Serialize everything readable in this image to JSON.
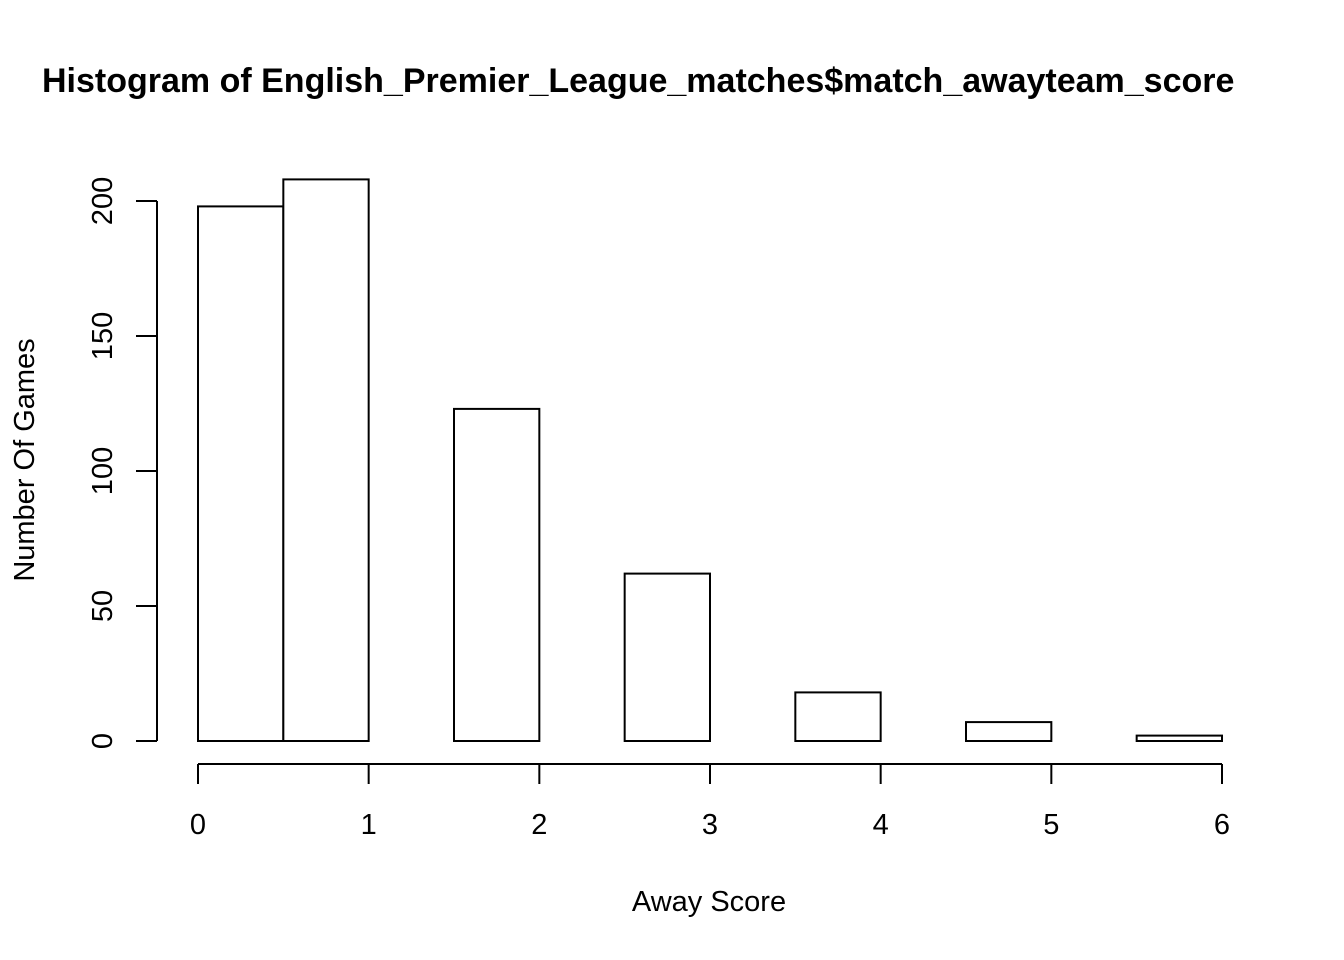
{
  "chart_data": {
    "type": "bar",
    "title": "Histogram of English_Premier_League_matches$match_awayteam_score",
    "xlabel": "Away Score",
    "ylabel": "Number Of Games",
    "bins": [
      {
        "start": 0.0,
        "end": 0.5,
        "count": 198
      },
      {
        "start": 0.5,
        "end": 1.0,
        "count": 208
      },
      {
        "start": 1.0,
        "end": 1.5,
        "count": 0
      },
      {
        "start": 1.5,
        "end": 2.0,
        "count": 123
      },
      {
        "start": 2.0,
        "end": 2.5,
        "count": 0
      },
      {
        "start": 2.5,
        "end": 3.0,
        "count": 62
      },
      {
        "start": 3.0,
        "end": 3.5,
        "count": 0
      },
      {
        "start": 3.5,
        "end": 4.0,
        "count": 18
      },
      {
        "start": 4.0,
        "end": 4.5,
        "count": 0
      },
      {
        "start": 4.5,
        "end": 5.0,
        "count": 7
      },
      {
        "start": 5.0,
        "end": 5.5,
        "count": 0
      },
      {
        "start": 5.5,
        "end": 6.0,
        "count": 2
      }
    ],
    "xlim": [
      0,
      6
    ],
    "ylim": [
      0,
      208
    ],
    "x_ticks": [
      0,
      1,
      2,
      3,
      4,
      5,
      6
    ],
    "y_ticks": [
      0,
      50,
      100,
      150,
      200
    ],
    "grid": false,
    "legend": "none",
    "bar_fill": "#ffffff",
    "bar_stroke": "#000000"
  }
}
